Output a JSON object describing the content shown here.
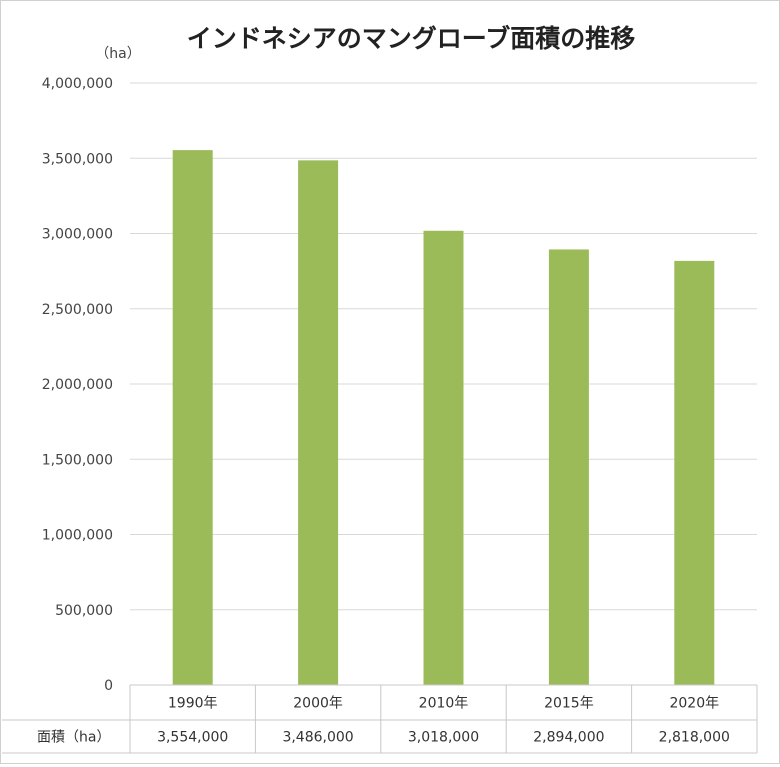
{
  "chart_data": {
    "type": "bar",
    "title": "インドネシアのマングローブ面積の推移",
    "unit_label": "（ha）",
    "categories": [
      "1990年",
      "2000年",
      "2010年",
      "2015年",
      "2020年"
    ],
    "values": [
      3554000,
      3486000,
      3018000,
      2894000,
      2818000
    ],
    "value_labels": [
      "3,554,000",
      "3,486,000",
      "3,018,000",
      "2,894,000",
      "2,818,000"
    ],
    "ylim": [
      0,
      4000000
    ],
    "yticks": [
      "0",
      "500,000",
      "1,000,000",
      "1,500,000",
      "2,000,000",
      "2,500,000",
      "3,000,000",
      "3,500,000",
      "4,000,000"
    ],
    "grid": true,
    "bar_color": "#9bbb59",
    "table_row_label": "面積（ha）"
  }
}
